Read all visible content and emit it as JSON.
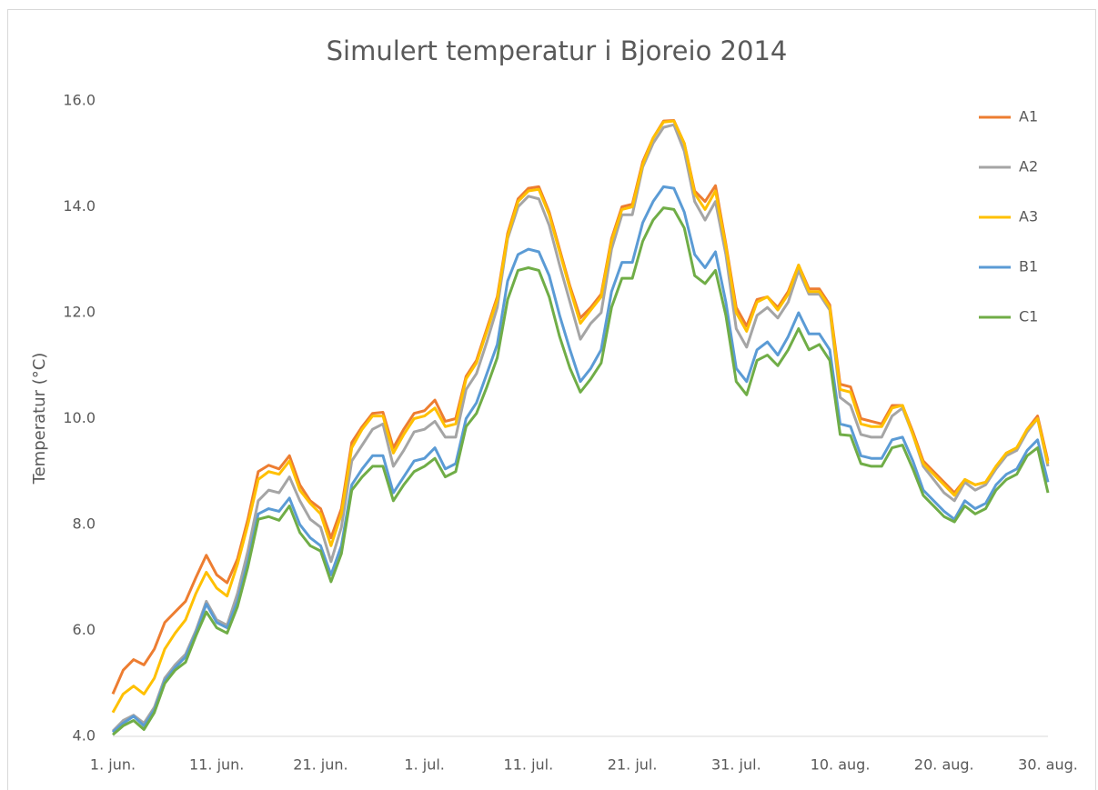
{
  "chart_data": {
    "type": "line",
    "title": "Simulert temperatur i Bjoreio 2014",
    "y_label": "Temperatur (°C)",
    "categories": [
      "1. jun.",
      null,
      null,
      null,
      null,
      null,
      null,
      null,
      null,
      null,
      "11. jun.",
      null,
      null,
      null,
      null,
      null,
      null,
      null,
      null,
      null,
      "21. jun.",
      null,
      null,
      null,
      null,
      null,
      null,
      null,
      null,
      null,
      "1. jul.",
      null,
      null,
      null,
      null,
      null,
      null,
      null,
      null,
      null,
      "11. jul.",
      null,
      null,
      null,
      null,
      null,
      null,
      null,
      null,
      null,
      "21. jul.",
      null,
      null,
      null,
      null,
      null,
      null,
      null,
      null,
      null,
      "31. jul.",
      null,
      null,
      null,
      null,
      null,
      null,
      null,
      null,
      null,
      "10. aug.",
      null,
      null,
      null,
      null,
      null,
      null,
      null,
      null,
      null,
      "20. aug.",
      null,
      null,
      null,
      null,
      null,
      null,
      null,
      null,
      null,
      "30. aug."
    ],
    "ylim": [
      4,
      16
    ],
    "yticks": [
      {
        "value": 4,
        "label": "4.0"
      },
      {
        "value": 6,
        "label": "6.0"
      },
      {
        "value": 8,
        "label": "8.0"
      },
      {
        "value": 10,
        "label": "10.0"
      },
      {
        "value": 12,
        "label": "12.0"
      },
      {
        "value": 14,
        "label": "14.0"
      },
      {
        "value": 16,
        "label": "16.0"
      }
    ],
    "grid": false,
    "legend": "top-right",
    "series": [
      {
        "name": "A1",
        "color": "#ed7d31",
        "values": [
          4.8,
          5.25,
          5.45,
          5.35,
          5.65,
          6.15,
          6.35,
          6.55,
          7.0,
          7.42,
          7.05,
          6.9,
          7.35,
          8.1,
          9.0,
          9.12,
          9.05,
          9.3,
          8.75,
          8.45,
          8.3,
          7.75,
          8.3,
          9.55,
          9.85,
          10.1,
          10.12,
          9.45,
          9.8,
          10.1,
          10.15,
          10.35,
          9.95,
          10.0,
          10.8,
          11.1,
          11.7,
          12.3,
          13.5,
          14.15,
          14.35,
          14.38,
          13.9,
          13.2,
          12.5,
          11.9,
          12.1,
          12.35,
          13.4,
          14.0,
          14.05,
          14.85,
          15.3,
          15.62,
          15.63,
          15.2,
          14.3,
          14.1,
          14.4,
          13.3,
          12.1,
          11.75,
          12.25,
          12.3,
          12.1,
          12.4,
          12.9,
          12.45,
          12.45,
          12.15,
          10.65,
          10.6,
          10.0,
          9.95,
          9.9,
          10.25,
          10.25,
          9.75,
          9.2,
          9.0,
          8.8,
          8.6,
          8.85,
          8.75,
          8.8,
          9.1,
          9.35,
          9.45,
          9.8,
          10.05,
          9.2
        ]
      },
      {
        "name": "A2",
        "color": "#a5a5a5",
        "values": [
          4.1,
          4.3,
          4.4,
          4.25,
          4.55,
          5.1,
          5.35,
          5.55,
          6.0,
          6.55,
          6.2,
          6.1,
          6.7,
          7.5,
          8.45,
          8.65,
          8.6,
          8.9,
          8.45,
          8.1,
          7.95,
          7.3,
          7.95,
          9.2,
          9.5,
          9.8,
          9.9,
          9.1,
          9.4,
          9.75,
          9.8,
          9.95,
          9.65,
          9.65,
          10.55,
          10.85,
          11.45,
          12.1,
          13.4,
          14.0,
          14.2,
          14.15,
          13.65,
          12.9,
          12.2,
          11.5,
          11.8,
          12.0,
          13.2,
          13.85,
          13.85,
          14.75,
          15.2,
          15.5,
          15.55,
          15.05,
          14.1,
          13.75,
          14.1,
          13.1,
          11.7,
          11.35,
          11.95,
          12.1,
          11.9,
          12.2,
          12.8,
          12.35,
          12.35,
          12.05,
          10.4,
          10.25,
          9.7,
          9.65,
          9.65,
          10.05,
          10.2,
          9.7,
          9.1,
          8.85,
          8.6,
          8.45,
          8.8,
          8.65,
          8.75,
          9.05,
          9.3,
          9.4,
          9.75,
          10.0,
          9.1
        ]
      },
      {
        "name": "A3",
        "color": "#ffc000",
        "values": [
          4.45,
          4.8,
          4.95,
          4.8,
          5.1,
          5.65,
          5.95,
          6.2,
          6.7,
          7.1,
          6.8,
          6.65,
          7.25,
          8.0,
          8.85,
          9.0,
          8.95,
          9.2,
          8.65,
          8.4,
          8.2,
          7.6,
          8.2,
          9.45,
          9.8,
          10.05,
          10.05,
          9.35,
          9.7,
          10.0,
          10.05,
          10.2,
          9.85,
          9.9,
          10.75,
          11.05,
          11.65,
          12.25,
          13.45,
          14.1,
          14.3,
          14.33,
          13.85,
          13.15,
          12.45,
          11.8,
          12.05,
          12.3,
          13.35,
          13.95,
          14.0,
          14.8,
          15.3,
          15.6,
          15.62,
          15.2,
          14.25,
          13.95,
          14.3,
          13.25,
          12.0,
          11.65,
          12.2,
          12.3,
          12.05,
          12.35,
          12.9,
          12.4,
          12.4,
          12.1,
          10.55,
          10.5,
          9.9,
          9.85,
          9.85,
          10.2,
          10.25,
          9.7,
          9.15,
          8.95,
          8.75,
          8.55,
          8.85,
          8.75,
          8.8,
          9.1,
          9.35,
          9.45,
          9.8,
          10.0,
          9.15
        ]
      },
      {
        "name": "B1",
        "color": "#5b9bd5",
        "values": [
          4.08,
          4.25,
          4.38,
          4.2,
          4.5,
          5.05,
          5.3,
          5.5,
          5.95,
          6.5,
          6.15,
          6.05,
          6.55,
          7.3,
          8.2,
          8.3,
          8.25,
          8.5,
          8.0,
          7.75,
          7.6,
          7.05,
          7.6,
          8.75,
          9.05,
          9.3,
          9.3,
          8.6,
          8.9,
          9.2,
          9.25,
          9.45,
          9.05,
          9.15,
          10.0,
          10.3,
          10.85,
          11.4,
          12.6,
          13.1,
          13.2,
          13.15,
          12.7,
          11.95,
          11.3,
          10.7,
          10.95,
          11.3,
          12.4,
          12.95,
          12.95,
          13.7,
          14.1,
          14.38,
          14.35,
          13.9,
          13.1,
          12.85,
          13.15,
          12.2,
          10.95,
          10.7,
          11.3,
          11.45,
          11.2,
          11.55,
          12.0,
          11.6,
          11.6,
          11.3,
          9.9,
          9.85,
          9.3,
          9.25,
          9.25,
          9.6,
          9.65,
          9.2,
          8.65,
          8.45,
          8.25,
          8.1,
          8.45,
          8.3,
          8.4,
          8.75,
          8.95,
          9.05,
          9.4,
          9.6,
          8.8
        ]
      },
      {
        "name": "C1",
        "color": "#70ad47",
        "values": [
          4.03,
          4.2,
          4.3,
          4.13,
          4.45,
          5.0,
          5.25,
          5.4,
          5.9,
          6.35,
          6.05,
          5.95,
          6.45,
          7.2,
          8.1,
          8.15,
          8.08,
          8.35,
          7.85,
          7.6,
          7.5,
          6.92,
          7.45,
          8.65,
          8.9,
          9.1,
          9.1,
          8.45,
          8.75,
          9.0,
          9.1,
          9.25,
          8.9,
          9.0,
          9.85,
          10.1,
          10.6,
          11.15,
          12.25,
          12.8,
          12.85,
          12.8,
          12.3,
          11.55,
          10.95,
          10.5,
          10.75,
          11.05,
          12.1,
          12.65,
          12.65,
          13.35,
          13.75,
          13.98,
          13.95,
          13.6,
          12.7,
          12.55,
          12.8,
          11.95,
          10.7,
          10.45,
          11.1,
          11.2,
          11.0,
          11.3,
          11.7,
          11.3,
          11.4,
          11.1,
          9.7,
          9.68,
          9.15,
          9.1,
          9.1,
          9.45,
          9.5,
          9.05,
          8.55,
          8.35,
          8.15,
          8.05,
          8.35,
          8.2,
          8.3,
          8.65,
          8.85,
          8.95,
          9.3,
          9.45,
          8.6
        ]
      }
    ]
  }
}
